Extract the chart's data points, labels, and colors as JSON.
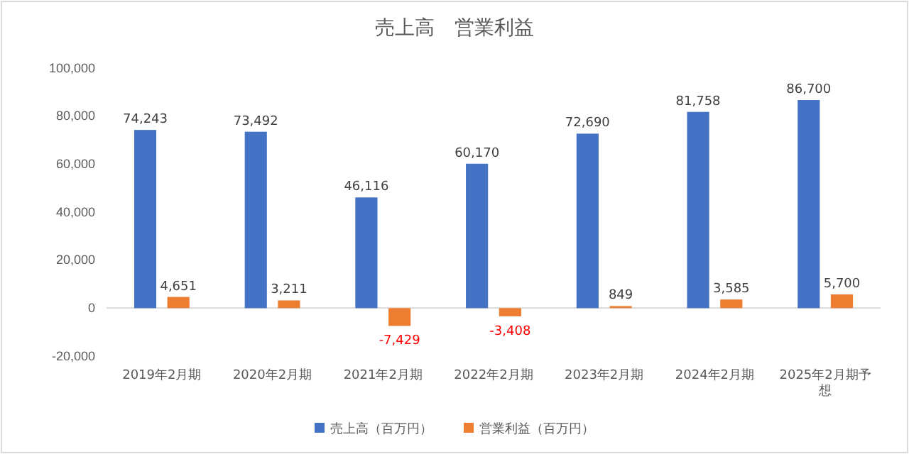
{
  "chart_data": {
    "type": "bar",
    "title": "売上高　営業利益",
    "categories": [
      "2019年2月期",
      "2020年2月期",
      "2021年2月期",
      "2022年2月期",
      "2023年2月期",
      "2024年2月期",
      "2025年2月期予想"
    ],
    "series": [
      {
        "name": "売上高（百万円）",
        "color": "#4472c4",
        "values": [
          74243,
          73492,
          46116,
          60170,
          72690,
          81758,
          86700
        ],
        "value_labels": [
          "74,243",
          "73,492",
          "46,116",
          "60,170",
          "72,690",
          "81,758",
          "86,700"
        ]
      },
      {
        "name": "営業利益（百万円）",
        "color": "#ed7d31",
        "values": [
          4651,
          3211,
          -7429,
          -3408,
          849,
          3585,
          5700
        ],
        "value_labels": [
          "4,651",
          "3,211",
          "-7,429",
          "-3,408",
          "849",
          "3,585",
          "5,700"
        ]
      }
    ],
    "ylim": [
      -20000,
      100000
    ],
    "yticks": [
      {
        "value": -20000,
        "label": "-20,000"
      },
      0,
      {
        "value": 20000,
        "label": "20,000"
      },
      {
        "value": 40000,
        "label": "40,000"
      },
      {
        "value": 60000,
        "label": "60,000"
      },
      {
        "value": 80000,
        "label": "80,000"
      },
      {
        "value": 100000,
        "label": "100,000"
      }
    ],
    "legend": "bottom"
  }
}
